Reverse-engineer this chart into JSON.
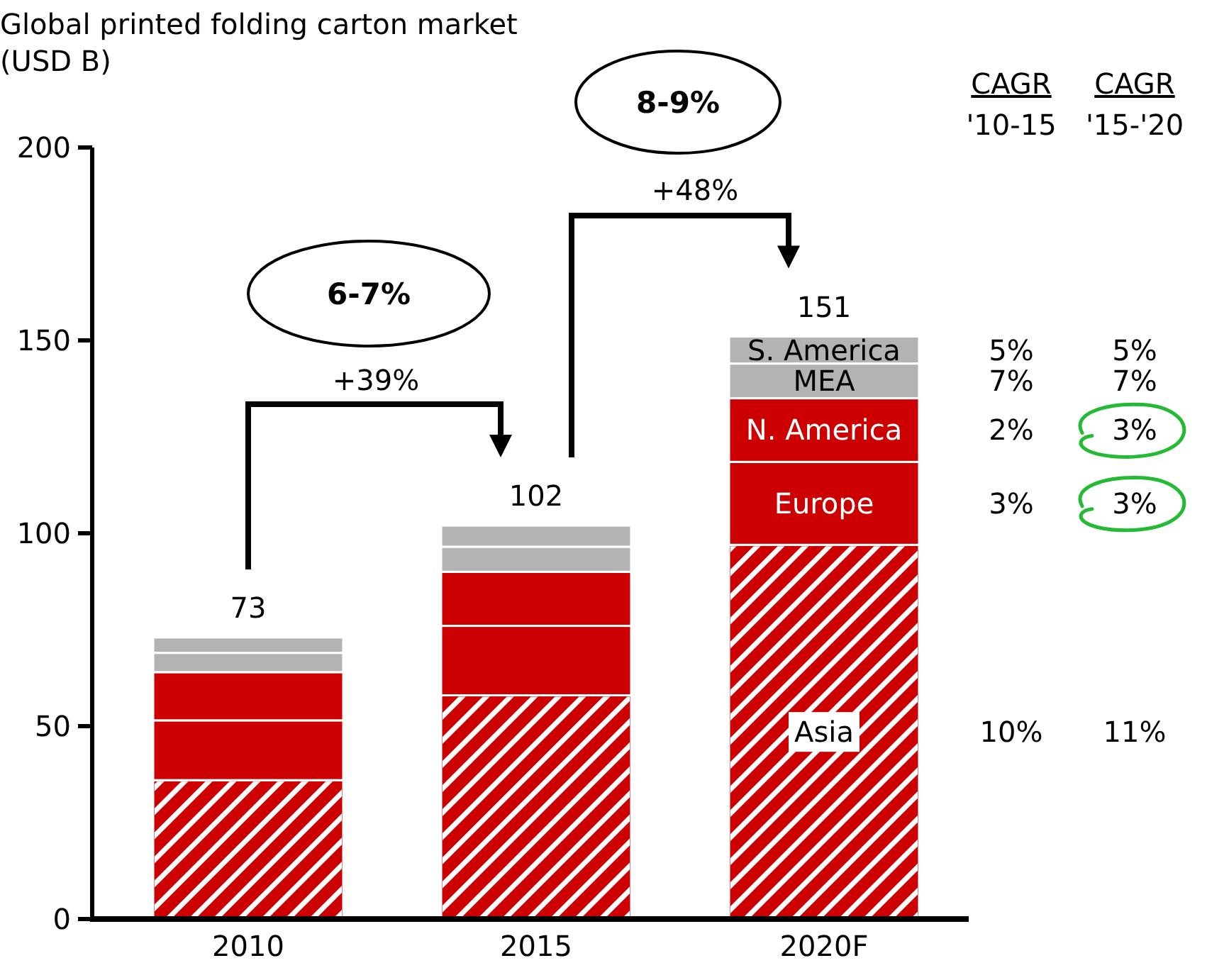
{
  "chart_data": {
    "type": "bar",
    "stacked": true,
    "title": "Global printed folding carton market\n(USD B)",
    "categories": [
      "2010",
      "2015",
      "2020F"
    ],
    "series": [
      {
        "name": "Asia",
        "color": "#cc0000",
        "values": [
          36,
          58,
          97
        ]
      },
      {
        "name": "Europe",
        "color": "#cc0000",
        "values": [
          15.5,
          18,
          21.5
        ]
      },
      {
        "name": "N. America",
        "color": "#cc0000",
        "values": [
          12.5,
          14,
          16.5
        ]
      },
      {
        "name": "MEA",
        "color": "#b3b3b3",
        "values": [
          5,
          6.5,
          9
        ]
      },
      {
        "name": "S. America",
        "color": "#b3b3b3",
        "values": [
          4,
          5.5,
          7
        ]
      }
    ],
    "totals": [
      "73",
      "102",
      "151"
    ],
    "ylim": [
      0,
      200
    ],
    "yticks": [
      0,
      50,
      100,
      150,
      200
    ],
    "grid": false,
    "annotations": [
      "6-7%",
      "+39%",
      "8-9%",
      "+48%",
      "CAGR",
      "'10-15",
      "CAGR",
      "'15-'20",
      "5%",
      "5%",
      "7%",
      "7%",
      "2%",
      "3%",
      "3%",
      "3%",
      "10%",
      "11%"
    ]
  }
}
